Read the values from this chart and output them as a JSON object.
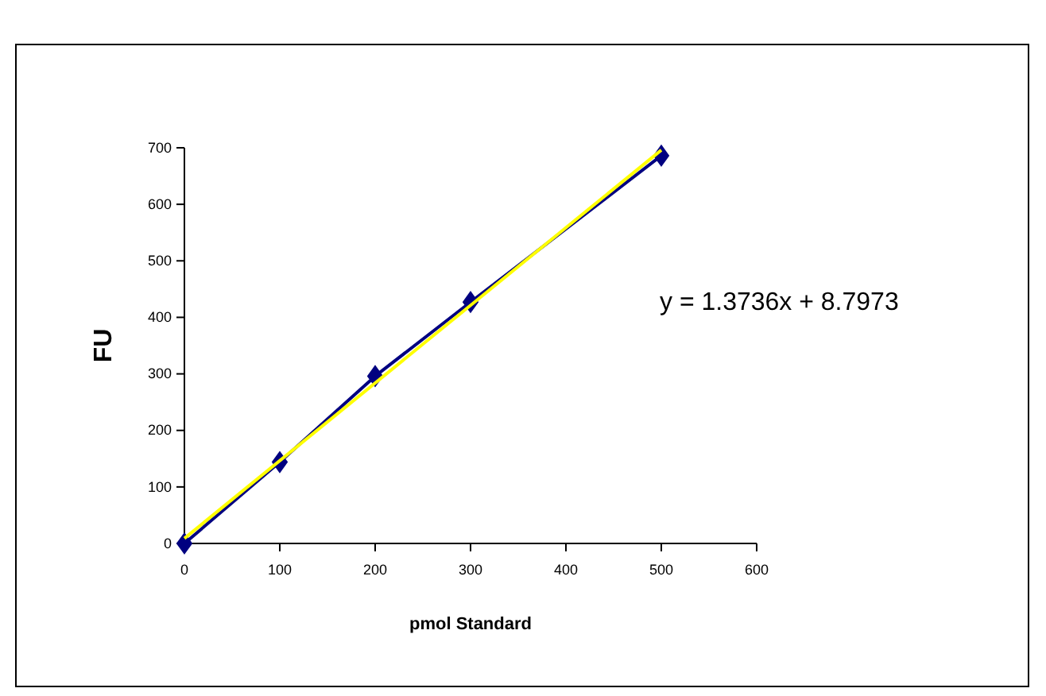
{
  "chart_data": {
    "type": "line",
    "xlabel": "pmol  Standard",
    "ylabel": "FU",
    "x": [
      0,
      100,
      200,
      300,
      500
    ],
    "series": [
      {
        "color": "#000080",
        "values": [
          0,
          144,
          296,
          427,
          686
        ],
        "marker": "diamond"
      },
      {
        "color": "#ffff00",
        "x": [
          0,
          500
        ],
        "values": [
          9,
          696
        ],
        "marker": "none"
      }
    ],
    "xlim": [
      0,
      600
    ],
    "xticks": [
      0,
      100,
      200,
      300,
      400,
      500,
      600
    ],
    "ylim": [
      0,
      700
    ],
    "yticks": [
      0,
      100,
      200,
      300,
      400,
      500,
      600,
      700
    ],
    "grid": false,
    "annotations": [
      "y = 1.3736x + 8.7973"
    ]
  }
}
